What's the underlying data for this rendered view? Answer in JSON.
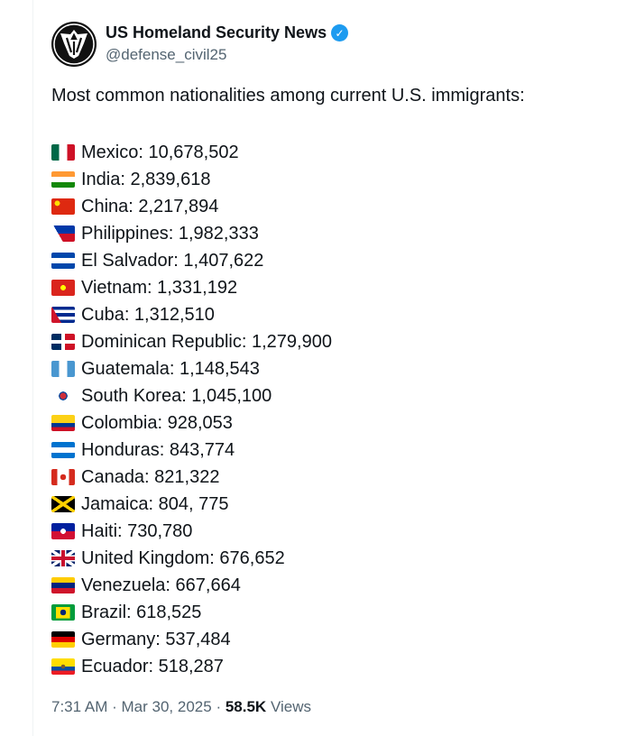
{
  "author": {
    "name": "US Homeland Security News",
    "handle": "@defense_civil25",
    "verified": true,
    "avatar_icon": "shield-eagle-logo"
  },
  "tweet": {
    "intro": "Most common nationalities among current U.S. immigrants:",
    "items": [
      {
        "flag": "mx",
        "label": "Mexico: 10,678,502"
      },
      {
        "flag": "in",
        "label": "India: 2,839,618"
      },
      {
        "flag": "cn",
        "label": "China: 2,217,894"
      },
      {
        "flag": "ph",
        "label": "Philippines: 1,982,333"
      },
      {
        "flag": "sv",
        "label": "El Salvador: 1,407,622"
      },
      {
        "flag": "vn",
        "label": "Vietnam: 1,331,192"
      },
      {
        "flag": "cu",
        "label": "Cuba: 1,312,510"
      },
      {
        "flag": "do",
        "label": "Dominican Republic: 1,279,900"
      },
      {
        "flag": "gt",
        "label": "Guatemala: 1,148,543"
      },
      {
        "flag": "kr",
        "label": "South Korea: 1,045,100"
      },
      {
        "flag": "co",
        "label": "Colombia: 928,053"
      },
      {
        "flag": "hn",
        "label": "Honduras: 843,774"
      },
      {
        "flag": "ca",
        "label": "Canada: 821,322"
      },
      {
        "flag": "jm",
        "label": "Jamaica: 804, 775"
      },
      {
        "flag": "ht",
        "label": "Haiti: 730,780"
      },
      {
        "flag": "gb",
        "label": "United Kingdom: 676,652"
      },
      {
        "flag": "ve",
        "label": "Venezuela: 667,664"
      },
      {
        "flag": "br",
        "label": "Brazil: 618,525"
      },
      {
        "flag": "de",
        "label": "Germany: 537,484"
      },
      {
        "flag": "ec",
        "label": "Ecuador: 518,287"
      }
    ]
  },
  "meta": {
    "time": "7:31 AM",
    "date": "Mar 30, 2025",
    "views_count": "58.5K",
    "views_label": "Views",
    "separator": "·"
  }
}
